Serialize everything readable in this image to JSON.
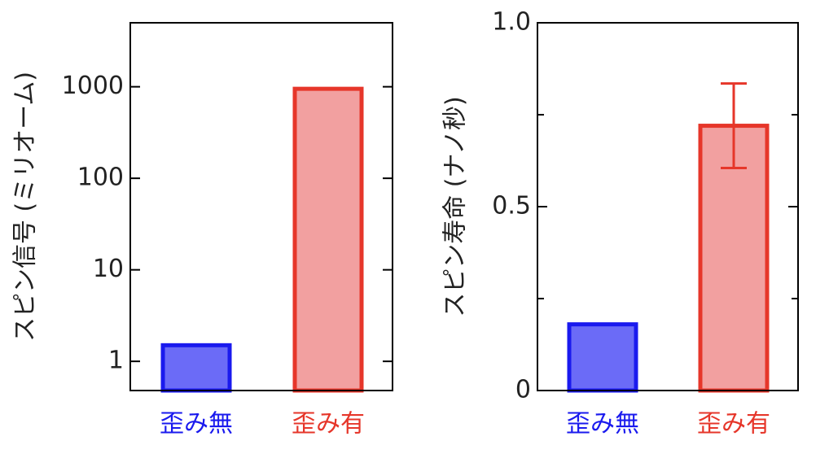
{
  "chart_data": [
    {
      "type": "bar",
      "y_label": "スピン信号 (ミリオーム)",
      "log_scale": true,
      "categories": [
        "歪み無",
        "歪み有"
      ],
      "values": [
        1.5,
        950
      ],
      "colors": [
        "#6b6bf7",
        "#f2a0a0"
      ],
      "edge_colors": [
        "#1a1aee",
        "#e6362a"
      ],
      "ylim": [
        0.48,
        5000
      ],
      "yticks": [
        1,
        10,
        100,
        1000
      ]
    },
    {
      "type": "bar",
      "y_label": "スピン寿命 (ナノ秒)",
      "log_scale": false,
      "categories": [
        "歪み無",
        "歪み有"
      ],
      "values": [
        0.18,
        0.72
      ],
      "errors": [
        null,
        0.115
      ],
      "colors": [
        "#6b6bf7",
        "#f2a0a0"
      ],
      "edge_colors": [
        "#1a1aee",
        "#e6362a"
      ],
      "ylim": [
        0,
        1
      ],
      "yticks": [
        0,
        0.5,
        {
          "value": 1,
          "label": "1.0"
        }
      ],
      "yminor_ticks": [
        0.25,
        0.75
      ]
    }
  ]
}
